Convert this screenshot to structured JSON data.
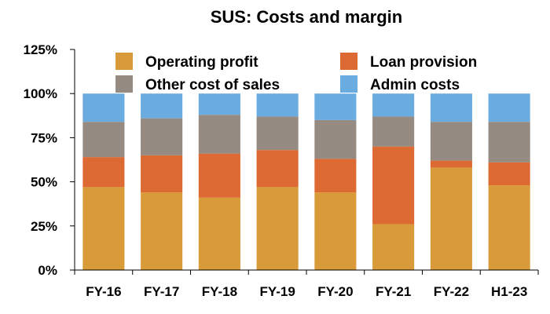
{
  "chart_data": {
    "type": "bar",
    "stacked": true,
    "title": "SUS: Costs and margin",
    "xlabel": "",
    "ylabel": "",
    "ylim": [
      0,
      125
    ],
    "ytick_values": [
      0,
      25,
      50,
      75,
      100,
      125
    ],
    "ytick_labels": [
      "0%",
      "25%",
      "50%",
      "75%",
      "100%",
      "125%"
    ],
    "categories": [
      "FY-16",
      "FY-17",
      "FY-18",
      "FY-19",
      "FY-20",
      "FY-21",
      "FY-22",
      "H1-23"
    ],
    "series": [
      {
        "name": "Operating profit",
        "color": "#D99B3A",
        "values": [
          47,
          44,
          41,
          47,
          44,
          26,
          58,
          48
        ]
      },
      {
        "name": "Loan provision",
        "color": "#DD6A32",
        "values": [
          17,
          21,
          25,
          21,
          19,
          44,
          4,
          13
        ]
      },
      {
        "name": "Other cost of sales",
        "color": "#958B82",
        "values": [
          20,
          21,
          22,
          19,
          22,
          17,
          22,
          23
        ]
      },
      {
        "name": "Admin costs",
        "color": "#6AABE0",
        "values": [
          16,
          14,
          12,
          13,
          15,
          13,
          16,
          16
        ]
      }
    ],
    "legend": {
      "position": "top",
      "order": [
        "Operating profit",
        "Loan provision",
        "Other cost of sales",
        "Admin costs"
      ]
    },
    "grid": false
  }
}
